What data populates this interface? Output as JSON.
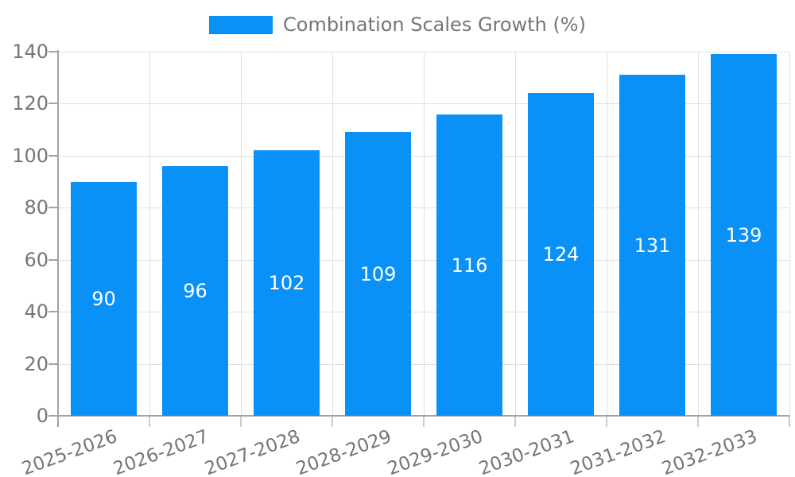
{
  "legend": {
    "label": "Combination Scales Growth (%)"
  },
  "colors": {
    "bar": "#0991f7",
    "text": "#757575",
    "value_label": "#ffffff",
    "grid": "#e0e0e0",
    "axis": "#a3a3a3",
    "xtick": "#cccccc"
  },
  "chart_data": {
    "type": "bar",
    "title": "Combination Scales Growth (%)",
    "categories": [
      "2025-2026",
      "2026-2027",
      "2027-2028",
      "2028-2029",
      "2029-2030",
      "2030-2031",
      "2031-2032",
      "2032-2033"
    ],
    "values": [
      90,
      96,
      102,
      109,
      116,
      124,
      131,
      139
    ],
    "xlabel": "",
    "ylabel": "",
    "ylim": [
      0,
      140
    ],
    "yticks": [
      0,
      20,
      40,
      60,
      80,
      100,
      120,
      140
    ],
    "grid": true,
    "legend_position": "top-center",
    "value_labels": "inside-center",
    "bar_color": "#0991f7"
  }
}
